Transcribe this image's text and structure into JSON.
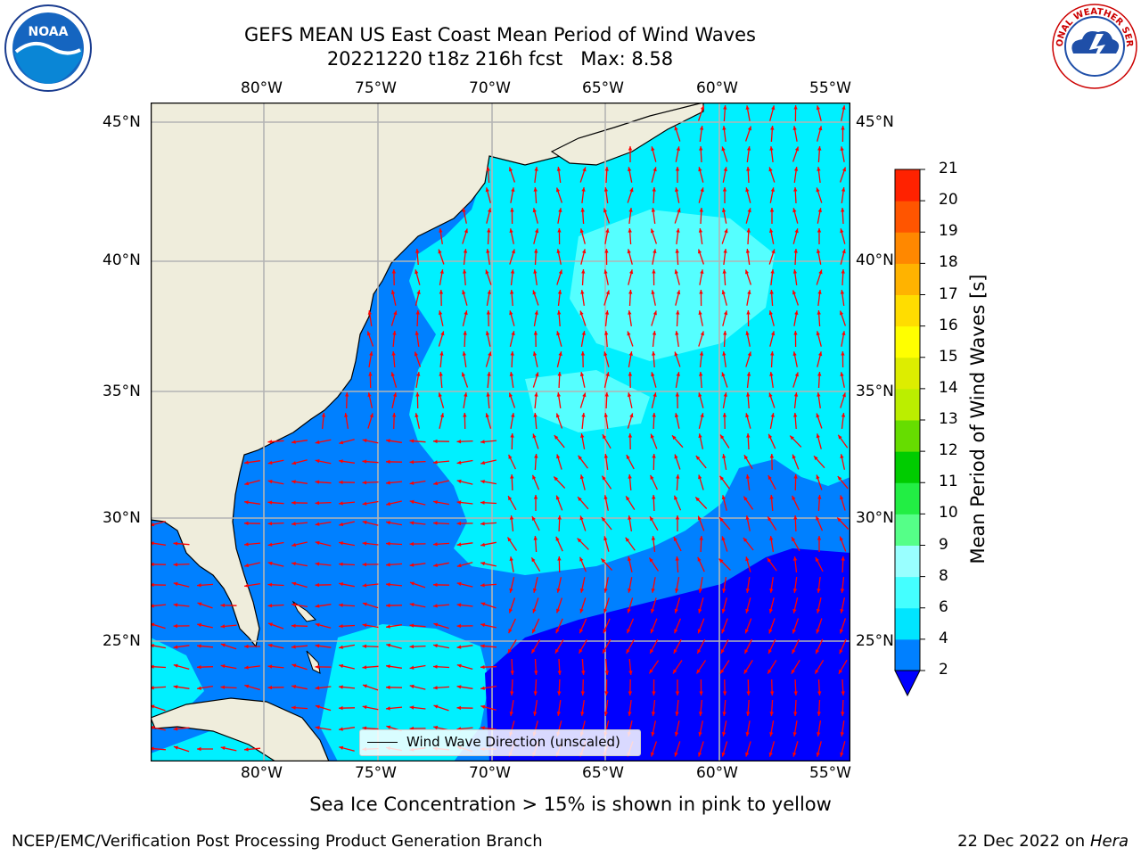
{
  "header": {
    "title_line1": "GEFS MEAN US East Coast Mean Period of Wind Waves",
    "title_line2": "20221220 t18z 216h fcst   Max: 8.58"
  },
  "logos": {
    "left": "noaa-logo",
    "left_text": "NOAA",
    "right": "nws-logo",
    "right_text": "NATIONAL WEATHER SERVICE"
  },
  "map": {
    "lon_labels": [
      "80°W",
      "75°W",
      "70°W",
      "65°W",
      "60°W",
      "55°W"
    ],
    "lat_labels": [
      "45°N",
      "40°N",
      "35°N",
      "30°N",
      "25°N"
    ],
    "extent": {
      "lon": [
        -85,
        -54.5
      ],
      "lat": [
        20.5,
        46.3
      ]
    },
    "gridlines": true,
    "colors": {
      "land": "#efeddc",
      "grid": "#b4b4b4",
      "arrows": "#ff0000",
      "coast": "#000000"
    }
  },
  "legend": {
    "label": "Wind Wave Direction (unscaled)",
    "placement": "lower-center"
  },
  "colorbar": {
    "label": "Mean Period of Wind Waves [s]",
    "ticks": [
      "2",
      "4",
      "6",
      "8",
      "9",
      "10",
      "11",
      "12",
      "13",
      "14",
      "15",
      "16",
      "17",
      "18",
      "19",
      "20",
      "21"
    ],
    "colors": [
      "#0080ff",
      "#00e5ff",
      "#44ffff",
      "#99ffff",
      "#55ff88",
      "#22ee44",
      "#00cc00",
      "#66dd00",
      "#bbee00",
      "#dded00",
      "#ffff00",
      "#ffdd00",
      "#ffb300",
      "#ff8800",
      "#ff5500",
      "#ff2200"
    ],
    "under_color": "#0000ff",
    "extend": "min"
  },
  "footer": {
    "note": "Sea Ice Concentration > 15% is shown in pink to yellow",
    "left": "NCEP/EMC/Verification Post Processing Product Generation Branch",
    "right_date": "22 Dec 2022 on",
    "right_host": "Hera"
  }
}
